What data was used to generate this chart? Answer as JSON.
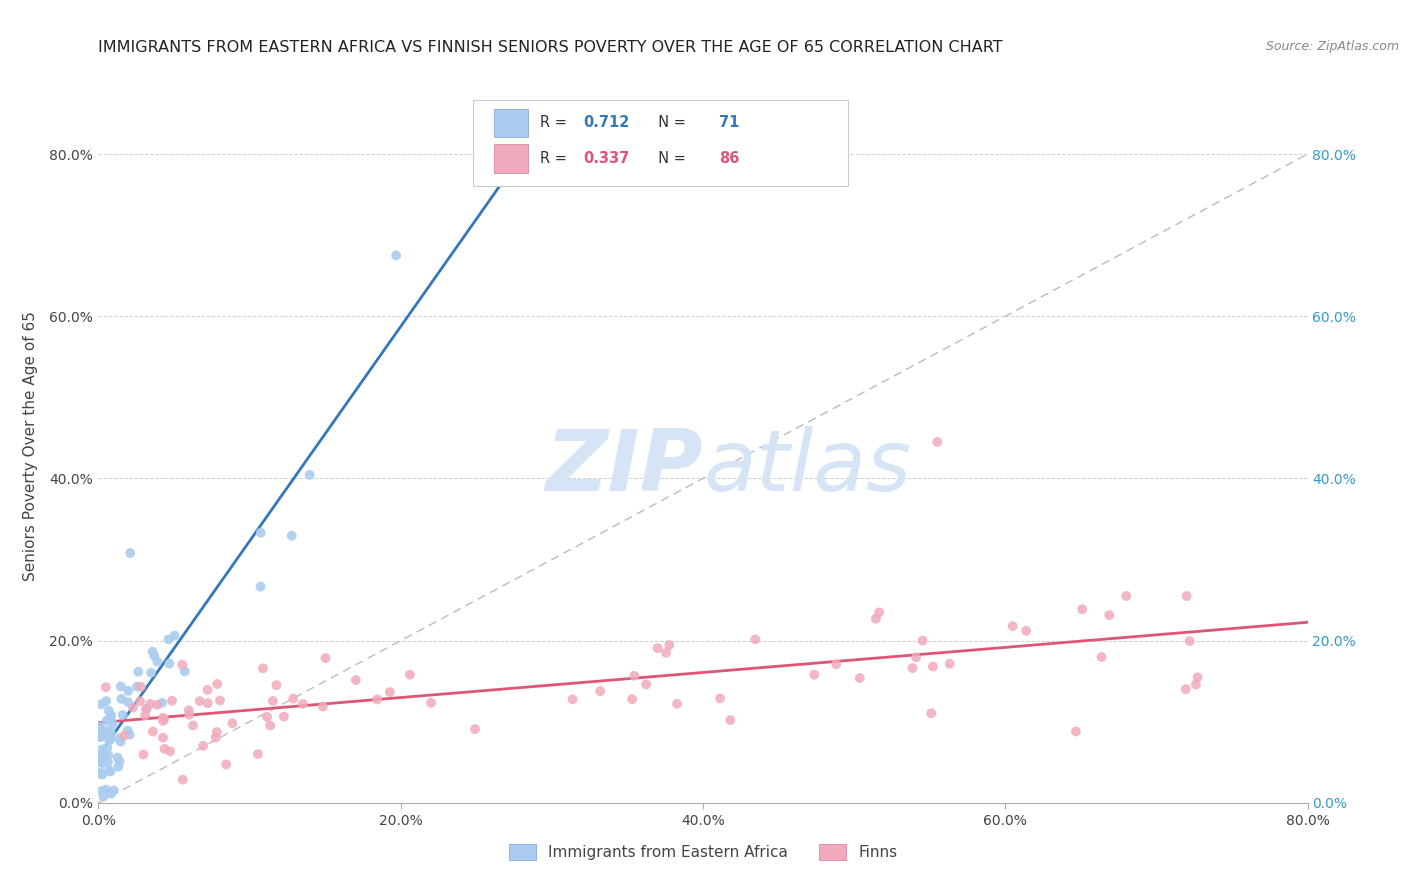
{
  "title": "IMMIGRANTS FROM EASTERN AFRICA VS FINNISH SENIORS POVERTY OVER THE AGE OF 65 CORRELATION CHART",
  "source": "Source: ZipAtlas.com",
  "ylabel": "Seniors Poverty Over the Age of 65",
  "r_blue": 0.712,
  "n_blue": 71,
  "r_pink": 0.337,
  "n_pink": 86,
  "legend_label_blue": "Immigrants from Eastern Africa",
  "legend_label_pink": "Finns",
  "xlim": [
    0,
    0.8
  ],
  "ylim": [
    0,
    0.88
  ],
  "xticks": [
    0.0,
    0.2,
    0.4,
    0.6,
    0.8
  ],
  "yticks": [
    0.0,
    0.2,
    0.4,
    0.6,
    0.8
  ],
  "grid_color": "#d0d0d0",
  "background_color": "#ffffff",
  "blue_scatter_color": "#aaccee",
  "pink_scatter_color": "#f0aabb",
  "blue_line_color": "#3377bb",
  "pink_line_color": "#dd5577",
  "ref_line_color": "#bbbbbb",
  "watermark_color": "#d5e5f5",
  "title_fontsize": 11.5,
  "axis_label_fontsize": 11,
  "tick_fontsize": 10,
  "source_fontsize": 9
}
